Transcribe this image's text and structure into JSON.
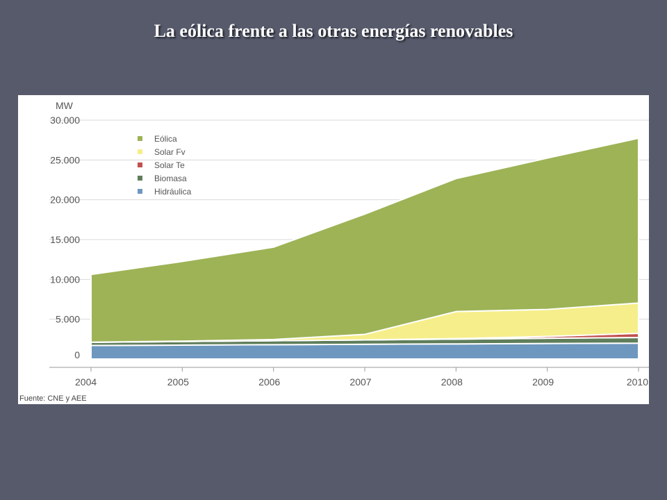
{
  "slide": {
    "title": "La eólica frente a las otras energías renovables"
  },
  "colors": {
    "background": "#565a6b",
    "eolica": "#9db356",
    "solar_fv": "#f6ee8a",
    "solar_te": "#c0504d",
    "biomasa": "#5f7e5a",
    "hidraulica": "#6d97be",
    "grid": "#d9d9d9"
  },
  "chart_data": {
    "type": "area",
    "stacked": true,
    "x": [
      "2004",
      "2005",
      "2006",
      "2007",
      "2008",
      "2009",
      "2010"
    ],
    "ylabel": "MW",
    "ylim": [
      0,
      30000
    ],
    "yticks": [
      "0",
      "5.000",
      "10.000",
      "15.000",
      "20.000",
      "25.000",
      "30.000"
    ],
    "ytick_values": [
      0,
      5000,
      10000,
      15000,
      20000,
      25000,
      30000
    ],
    "grid": true,
    "legend_placement": "top-left",
    "series": [
      {
        "name": "Hidráulica",
        "color": "#6d97be",
        "values": [
          1700,
          1750,
          1800,
          1850,
          1900,
          1950,
          2000
        ]
      },
      {
        "name": "Biomasa",
        "color": "#5f7e5a",
        "values": [
          400,
          450,
          500,
          550,
          600,
          650,
          700
        ]
      },
      {
        "name": "Solar Te",
        "color": "#c0504d",
        "values": [
          0,
          0,
          0,
          0,
          60,
          230,
          530
        ]
      },
      {
        "name": "Solar Fv",
        "color": "#f6ee8a",
        "values": [
          20,
          50,
          150,
          700,
          3400,
          3400,
          3800
        ]
      },
      {
        "name": "Eólica",
        "color": "#9db356",
        "values": [
          8500,
          10000,
          11600,
          15100,
          16700,
          19000,
          20700
        ]
      }
    ],
    "legend": [
      "Eólica",
      "Solar Fv",
      "Solar Te",
      "Biomasa",
      "Hidráulica"
    ],
    "source": "Fuente: CNE y AEE"
  }
}
